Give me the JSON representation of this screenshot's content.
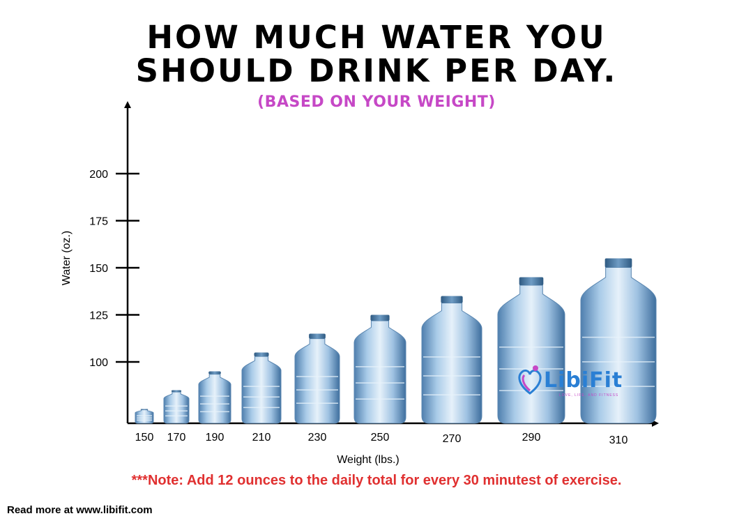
{
  "header": {
    "title_line1": "HOW MUCH WATER YOU",
    "title_line2": "SHOULD DRINK PER DAY.",
    "subtitle": "(BASED ON YOUR WEIGHT)"
  },
  "chart_data": {
    "type": "bar",
    "mark": "water-bottle",
    "categories": [
      "150",
      "170",
      "190",
      "210",
      "230",
      "250",
      "270",
      "290",
      "310"
    ],
    "values": [
      75,
      85,
      95,
      105,
      115,
      125,
      135,
      145,
      155
    ],
    "xlabel": "Weight (lbs.)",
    "ylabel": "Water (oz.)",
    "yticks": [
      100,
      125,
      150,
      175,
      200
    ],
    "colors": {
      "bottle": "#8fb8dc",
      "cap": "#3d6f9c",
      "axis": "#000000"
    }
  },
  "logo": {
    "name": "LibiFit",
    "tagline": "LOVE, LIFE, AND FITNESS"
  },
  "note": "***Note:  Add 12 ounces to the daily total for every 30 minutest of exercise.",
  "footer": "Read more at www.libifit.com"
}
